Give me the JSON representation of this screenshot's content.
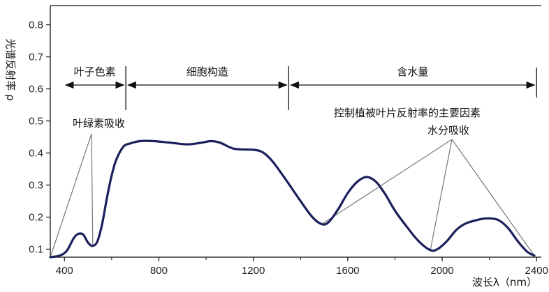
{
  "chart_data": {
    "type": "line",
    "title": "",
    "ylabel": "光谱反射率 ρ",
    "xlabel": "波长λ（nm）",
    "xlim": [
      340,
      2420
    ],
    "ylim": [
      0.075,
      0.86
    ],
    "x_ticks": [
      400,
      800,
      1200,
      1600,
      2000,
      2400
    ],
    "y_ticks": [
      0.1,
      0.2,
      0.3,
      0.4,
      0.5,
      0.6,
      0.7,
      0.8
    ],
    "grid": false,
    "series": [
      {
        "name": "",
        "color": "#1b1f5c",
        "points": [
          [
            340,
            0.075
          ],
          [
            380,
            0.08
          ],
          [
            410,
            0.095
          ],
          [
            440,
            0.135
          ],
          [
            460,
            0.148
          ],
          [
            480,
            0.145
          ],
          [
            500,
            0.12
          ],
          [
            520,
            0.11
          ],
          [
            540,
            0.125
          ],
          [
            560,
            0.18
          ],
          [
            580,
            0.26
          ],
          [
            600,
            0.33
          ],
          [
            620,
            0.38
          ],
          [
            650,
            0.42
          ],
          [
            680,
            0.43
          ],
          [
            720,
            0.437
          ],
          [
            780,
            0.437
          ],
          [
            850,
            0.432
          ],
          [
            920,
            0.427
          ],
          [
            980,
            0.432
          ],
          [
            1020,
            0.437
          ],
          [
            1060,
            0.432
          ],
          [
            1120,
            0.413
          ],
          [
            1200,
            0.41
          ],
          [
            1240,
            0.402
          ],
          [
            1280,
            0.375
          ],
          [
            1330,
            0.325
          ],
          [
            1400,
            0.25
          ],
          [
            1450,
            0.2
          ],
          [
            1490,
            0.178
          ],
          [
            1520,
            0.185
          ],
          [
            1560,
            0.225
          ],
          [
            1600,
            0.275
          ],
          [
            1640,
            0.31
          ],
          [
            1680,
            0.325
          ],
          [
            1720,
            0.31
          ],
          [
            1760,
            0.27
          ],
          [
            1800,
            0.22
          ],
          [
            1850,
            0.17
          ],
          [
            1900,
            0.125
          ],
          [
            1950,
            0.097
          ],
          [
            1980,
            0.1
          ],
          [
            2020,
            0.125
          ],
          [
            2060,
            0.16
          ],
          [
            2100,
            0.18
          ],
          [
            2160,
            0.193
          ],
          [
            2200,
            0.196
          ],
          [
            2240,
            0.19
          ],
          [
            2280,
            0.165
          ],
          [
            2320,
            0.125
          ],
          [
            2360,
            0.092
          ],
          [
            2390,
            0.08
          ]
        ]
      }
    ],
    "annotations": {
      "regions": [
        {
          "label": "叶子色素",
          "from": 340,
          "to": 660
        },
        {
          "label": "细胞构造",
          "from": 660,
          "to": 1350
        },
        {
          "label": "含水量",
          "from": 1350,
          "to": 2400
        }
      ],
      "chlorophyll_absorption": {
        "label": "叶绿素吸收",
        "targets": [
          [
            340,
            0.075
          ],
          [
            520,
            0.11
          ]
        ]
      },
      "water_absorption": {
        "label": "水分吸收",
        "targets": [
          [
            1490,
            0.178
          ],
          [
            1950,
            0.097
          ],
          [
            2390,
            0.08
          ]
        ]
      },
      "factor_label": "控制植被叶片反射率的主要因素"
    }
  }
}
